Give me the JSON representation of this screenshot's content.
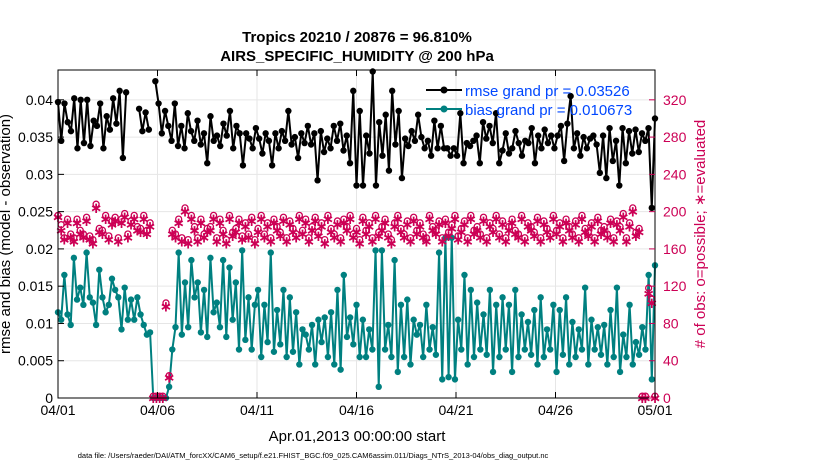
{
  "chart_data": {
    "type": "line",
    "title": "Tropics 20210 / 20876 = 96.810%",
    "subtitle": "AIRS_SPECIFIC_HUMIDITY @ 200 hPa",
    "xlabel": "Apr.01,2013 00:00:00 start",
    "ylabel": "rmse and bias (model - observation)",
    "y2label": "# of obs: o=possible; ∗=evaluated",
    "xlim": [
      0,
      30
    ],
    "ylim": [
      0,
      0.044
    ],
    "y2lim": [
      0,
      352
    ],
    "x_ticks": [
      0,
      5,
      10,
      15,
      20,
      25,
      30
    ],
    "x_tick_labels": [
      "04/01",
      "04/06",
      "04/11",
      "04/16",
      "04/21",
      "04/26",
      "05/01"
    ],
    "y_ticks": [
      0,
      0.005,
      0.01,
      0.015,
      0.02,
      0.025,
      0.03,
      0.035,
      0.04
    ],
    "y_tick_labels": [
      "0",
      "0.005",
      "0.01",
      "0.015",
      "0.02",
      "0.025",
      "0.03",
      "0.035",
      "0.04"
    ],
    "y2_ticks": [
      0,
      40,
      80,
      120,
      160,
      200,
      240,
      280,
      320
    ],
    "y2_tick_labels": [
      "0",
      "40",
      "80",
      "120",
      "160",
      "200",
      "240",
      "280",
      "320"
    ],
    "rmse": {
      "legend": "rmse grand pr = 0.03526",
      "color": "#000000",
      "values": [
        0.0397,
        0.0345,
        0.0395,
        0.037,
        0.0358,
        0.0402,
        0.0335,
        0.04,
        0.0342,
        0.04,
        0.0338,
        0.0372,
        0.0365,
        0.0395,
        0.0335,
        0.0378,
        0.036,
        0.0402,
        0.0368,
        0.0412,
        0.0322,
        0.041,
        null,
        null,
        null,
        0.0388,
        0.0358,
        0.0383,
        0.036,
        null,
        0.0425,
        0.0395,
        0.0355,
        0.0385,
        0.0365,
        0.0345,
        0.0395,
        0.0338,
        0.0365,
        0.0335,
        0.0382,
        0.0358,
        0.0345,
        0.0372,
        0.034,
        0.0355,
        0.0315,
        0.0378,
        0.0345,
        0.0352,
        0.0338,
        0.0368,
        0.0352,
        0.0385,
        0.0335,
        0.0365,
        0.0355,
        0.0312,
        0.0355,
        0.0348,
        0.0335,
        0.0362,
        0.0348,
        0.0328,
        0.0355,
        0.0345,
        0.0312,
        0.0355,
        0.0335,
        0.0358,
        0.0345,
        0.0385,
        0.034,
        0.035,
        0.0322,
        0.0355,
        0.0342,
        0.0365,
        0.034,
        0.0355,
        0.0292,
        0.0358,
        0.033,
        0.0348,
        0.0335,
        0.0365,
        0.0345,
        0.0368,
        0.0332,
        0.0352,
        0.0315,
        0.0412,
        0.0285,
        0.0385,
        0.0285,
        0.0352,
        0.0328,
        0.0438,
        0.0285,
        0.037,
        0.0325,
        0.038,
        0.0305,
        0.0412,
        0.034,
        0.0385,
        0.0295,
        0.0348,
        0.0338,
        0.0358,
        0.0345,
        0.038,
        0.035,
        0.0335,
        0.0345,
        0.0325,
        0.0372,
        0.0335,
        0.0365,
        0.0335,
        0.0335,
        0.0325,
        0.0335,
        0.0325,
        0.0382,
        0.0315,
        0.0342,
        0.0338,
        0.0345,
        0.0352,
        0.0315,
        0.037,
        0.0348,
        0.0365,
        0.0342,
        0.0382,
        0.0315,
        0.0332,
        0.0355,
        0.0328,
        0.0335,
        0.0358,
        0.0342,
        0.0325,
        0.0345,
        0.0342,
        0.0362,
        0.0315,
        0.0352,
        0.0335,
        0.036,
        0.0342,
        0.0352,
        0.0335,
        0.0352,
        0.0365,
        0.0318,
        0.0368,
        0.0405,
        0.0335,
        0.0355,
        0.0325,
        0.035,
        0.0335,
        0.0348,
        0.0352,
        0.034,
        0.0302,
        0.0352,
        0.0295,
        0.0362,
        0.0318,
        0.0345,
        0.0285,
        0.0362,
        0.0315,
        0.0358,
        0.0328,
        0.036,
        0.033,
        0.0355,
        0.0345,
        0.0362,
        0.0255,
        0.0375
      ]
    },
    "bias": {
      "legend": "bias grand pr = 0.010673",
      "color": "#008080",
      "values": [
        0.0115,
        0.0105,
        0.0165,
        0.0112,
        0.0098,
        0.0188,
        0.0132,
        0.0148,
        0.0125,
        0.0195,
        0.0135,
        0.0128,
        0.0098,
        0.0172,
        0.0135,
        0.0115,
        0.0125,
        0.016,
        0.0145,
        0.0135,
        0.0092,
        0.0148,
        0.0105,
        0.0132,
        0.0105,
        0.0135,
        0.0112,
        0.0098,
        0.0085,
        0.0088,
        0.0,
        0.0,
        0.0,
        0.0,
        0.0,
        0.0015,
        0.0065,
        0.0095,
        0.0195,
        0.0085,
        0.0155,
        0.0095,
        0.0185,
        0.0135,
        0.0155,
        0.0088,
        0.0145,
        0.0082,
        0.0188,
        0.0115,
        0.0128,
        0.0095,
        0.0185,
        0.0082,
        0.0175,
        0.0105,
        0.0155,
        0.0065,
        0.0198,
        0.0078,
        0.0135,
        0.0065,
        0.0125,
        0.0145,
        0.0055,
        0.0125,
        0.0075,
        0.0195,
        0.0062,
        0.0118,
        0.0072,
        0.0145,
        0.0055,
        0.0135,
        0.0062,
        0.0115,
        0.0045,
        0.0092,
        0.0085,
        0.0065,
        0.0098,
        0.0045,
        0.0105,
        0.0075,
        0.0108,
        0.0055,
        0.0115,
        0.0045,
        0.0145,
        0.0038,
        0.0165,
        0.0082,
        0.0108,
        0.0072,
        0.0125,
        0.0055,
        0.0105,
        0.0055,
        0.0092,
        0.0065,
        0.0198,
        0.0015,
        0.0198,
        0.0065,
        0.0098,
        0.0055,
        0.0185,
        0.0035,
        0.0125,
        0.0055,
        0.0132,
        0.0045,
        0.0105,
        0.0085,
        0.0098,
        0.0055,
        0.0125,
        0.0065,
        0.0095,
        0.0058,
        0.0195,
        0.0025,
        0.0215,
        0.0028,
        0.0215,
        0.0025,
        0.0105,
        0.0065,
        0.0165,
        0.0045,
        0.0145,
        0.0055,
        0.0128,
        0.0065,
        0.0112,
        0.0058,
        0.0145,
        0.0035,
        0.0125,
        0.0055,
        0.0135,
        0.0065,
        0.0125,
        0.0035,
        0.0145,
        0.0055,
        0.0112,
        0.0065,
        0.0102,
        0.0058,
        0.0118,
        0.0045,
        0.0135,
        0.0055,
        0.0092,
        0.0065,
        0.0125,
        0.0035,
        0.0118,
        0.0058,
        0.0135,
        0.0045,
        0.0102,
        0.0055,
        0.0092,
        0.0065,
        0.0148,
        0.0045,
        0.0105,
        0.0065,
        0.0095,
        0.0058,
        0.0098,
        0.0045,
        0.0118,
        0.0055,
        0.0148,
        0.0035,
        0.0085,
        0.0055,
        0.0125,
        0.0045,
        0.0075,
        0.0058,
        0.0095,
        0.0065,
        0.0165,
        0.0025,
        0.0178
      ]
    },
    "possible": {
      "symbol": "o",
      "color": "#cc0055",
      "values": [
        196,
        186,
        172,
        192,
        176,
        172,
        192,
        180,
        176,
        194,
        174,
        170,
        208,
        182,
        180,
        196,
        174,
        190,
        194,
        172,
        192,
        198,
        176,
        190,
        196,
        184,
        182,
        196,
        180,
        188,
        2,
        2,
        2,
        2,
        102,
        24,
        180,
        176,
        192,
        172,
        204,
        170,
        196,
        184,
        172,
        192,
        176,
        182,
        184,
        196,
        172,
        192,
        180,
        170,
        196,
        178,
        182,
        192,
        174,
        188,
        176,
        194,
        170,
        182,
        196,
        176,
        188,
        172,
        192,
        184,
        178,
        194,
        172,
        190,
        182,
        176,
        196,
        180,
        192,
        172,
        184,
        194,
        178,
        188,
        170,
        196,
        182,
        176,
        190,
        172,
        192,
        184,
        196,
        176,
        182,
        170,
        194,
        180,
        188,
        172,
        196,
        178,
        184,
        192,
        176,
        170,
        188,
        196,
        182,
        176,
        190,
        172,
        194,
        180,
        188,
        176,
        172,
        196,
        184,
        180,
        190,
        172,
        192,
        178,
        186,
        196,
        174,
        182,
        190,
        172,
        196,
        180,
        184,
        176,
        194,
        172,
        188,
        182,
        196,
        176,
        190,
        172,
        184,
        192,
        180,
        176,
        196,
        172,
        188,
        184,
        178,
        194,
        172,
        190,
        182,
        176,
        196,
        180,
        188,
        172,
        192,
        184,
        176,
        190,
        172,
        196,
        182,
        178,
        188,
        172,
        194,
        180,
        184,
        176,
        192,
        172,
        190,
        184,
        198,
        172,
        188,
        204,
        178,
        182,
        2,
        2,
        118,
        106,
        2
      ]
    },
    "evaluated": {
      "symbol": "∗",
      "color": "#cc0055",
      "values": [
        194,
        180,
        170,
        188,
        172,
        168,
        188,
        176,
        172,
        190,
        170,
        166,
        204,
        178,
        176,
        192,
        170,
        186,
        190,
        168,
        188,
        194,
        172,
        186,
        192,
        180,
        178,
        192,
        176,
        184,
        0,
        0,
        0,
        0,
        98,
        22,
        176,
        172,
        188,
        168,
        200,
        166,
        192,
        180,
        168,
        188,
        172,
        178,
        180,
        192,
        168,
        188,
        176,
        166,
        192,
        174,
        178,
        188,
        170,
        184,
        172,
        190,
        166,
        178,
        192,
        172,
        184,
        168,
        188,
        180,
        174,
        190,
        168,
        186,
        178,
        172,
        192,
        176,
        188,
        168,
        180,
        190,
        174,
        184,
        166,
        192,
        178,
        172,
        186,
        168,
        188,
        180,
        192,
        172,
        178,
        166,
        190,
        176,
        184,
        168,
        192,
        174,
        180,
        188,
        172,
        166,
        184,
        192,
        178,
        172,
        186,
        168,
        190,
        176,
        184,
        172,
        168,
        192,
        180,
        176,
        186,
        168,
        188,
        174,
        182,
        192,
        170,
        178,
        186,
        168,
        192,
        176,
        180,
        172,
        190,
        168,
        184,
        178,
        192,
        172,
        186,
        168,
        180,
        188,
        176,
        172,
        192,
        168,
        184,
        180,
        174,
        190,
        168,
        186,
        178,
        172,
        192,
        176,
        184,
        168,
        188,
        180,
        172,
        186,
        168,
        192,
        178,
        174,
        184,
        168,
        190,
        176,
        180,
        172,
        188,
        168,
        186,
        180,
        194,
        168,
        184,
        200,
        174,
        178,
        0,
        0,
        112,
        102,
        0
      ]
    }
  },
  "footer": "data file: /Users/raeder/DAI/ATM_forcXX/CAM6_setup/f.e21.FHIST_BGC.f09_025.CAM6assim.011/Diags_NTrS_2013-04/obs_diag_output.nc"
}
